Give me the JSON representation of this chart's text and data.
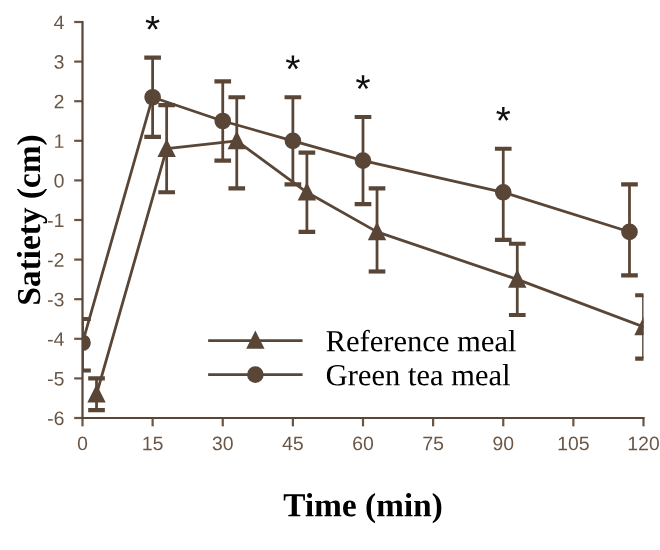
{
  "chart_data": {
    "type": "line",
    "xlabel": "Time (min)",
    "ylabel": "Satiety (cm)",
    "xlim": [
      0,
      120
    ],
    "xticks": [
      0,
      15,
      30,
      45,
      60,
      75,
      90,
      105,
      120
    ],
    "ylim": [
      -6,
      4
    ],
    "yticks": [
      -6,
      -5,
      -4,
      -3,
      -2,
      -1,
      0,
      1,
      2,
      3,
      4
    ],
    "grid": false,
    "legend": "bottom",
    "line_style": "solid",
    "series": [
      {
        "name": "Reference meal",
        "color": "#5a4636",
        "marker": "triangle",
        "x": [
          3,
          18,
          33,
          48,
          63,
          93,
          120
        ],
        "values": [
          -5.4,
          0.8,
          1.0,
          -0.3,
          -1.3,
          -2.5,
          -3.7
        ],
        "errors": [
          [
            -5.8,
            -5.0
          ],
          [
            -0.3,
            1.9
          ],
          [
            -0.2,
            2.1
          ],
          [
            -1.3,
            0.7
          ],
          [
            -2.3,
            -0.2
          ],
          [
            -3.4,
            -1.6
          ],
          [
            -4.5,
            -2.9
          ]
        ]
      },
      {
        "name": "Green tea meal",
        "color": "#5a4636",
        "marker": "circle",
        "x": [
          0,
          15,
          30,
          45,
          60,
          90,
          117
        ],
        "values": [
          -4.1,
          2.1,
          1.5,
          1.0,
          0.5,
          -0.3,
          -1.3
        ],
        "errors": [
          [
            -4.8,
            -3.5
          ],
          [
            1.1,
            3.1
          ],
          [
            0.5,
            2.5
          ],
          [
            -0.1,
            2.1
          ],
          [
            -0.6,
            1.6
          ],
          [
            -1.5,
            0.8
          ],
          [
            -2.4,
            -0.1
          ]
        ]
      }
    ],
    "annotations": [
      {
        "text": "*",
        "x": 15,
        "y": 3.1
      },
      {
        "text": "*",
        "x": 45,
        "y": 2.1
      },
      {
        "text": "*",
        "x": 60,
        "y": 1.6
      },
      {
        "text": "*",
        "x": 90,
        "y": 0.8
      }
    ]
  }
}
